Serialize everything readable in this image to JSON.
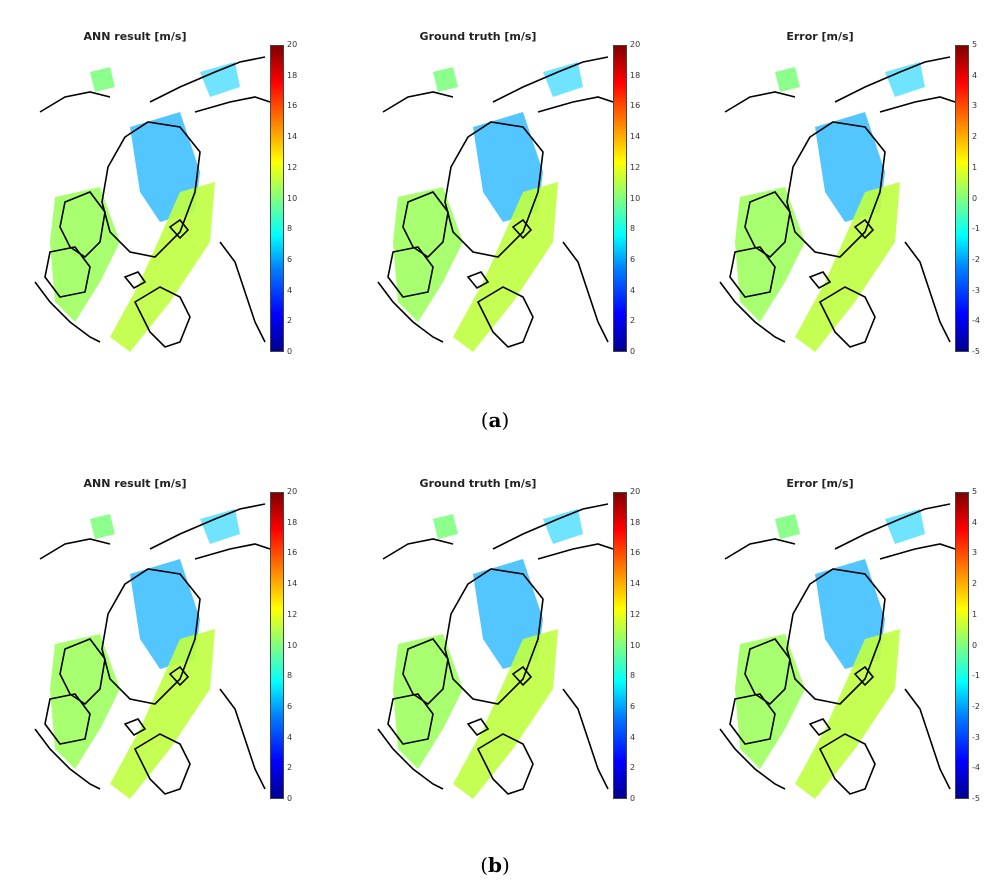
{
  "figure": {
    "rows": [
      {
        "id": "a",
        "caption_open": "(",
        "caption_letter": "a",
        "caption_close": ")",
        "panels": [
          {
            "title": "ANN result [m/s]",
            "scale": "speed",
            "ticks": [
              "20",
              "18",
              "16",
              "14",
              "12",
              "10",
              "8",
              "6",
              "4",
              "2",
              "0"
            ]
          },
          {
            "title": "Ground truth [m/s]",
            "scale": "speed",
            "ticks": [
              "20",
              "18",
              "16",
              "14",
              "12",
              "10",
              "8",
              "6",
              "4",
              "2",
              "0"
            ]
          },
          {
            "title": "Error [m/s]",
            "scale": "error",
            "ticks": [
              "5",
              "4",
              "3",
              "2",
              "1",
              "0",
              "-1",
              "-2",
              "-3",
              "-4",
              "-5"
            ]
          }
        ]
      },
      {
        "id": "b",
        "caption_open": "(",
        "caption_letter": "b",
        "caption_close": ")",
        "panels": [
          {
            "title": "ANN result [m/s]",
            "scale": "speed",
            "ticks": [
              "20",
              "18",
              "16",
              "14",
              "12",
              "10",
              "8",
              "6",
              "4",
              "2",
              "0"
            ]
          },
          {
            "title": "Ground truth [m/s]",
            "scale": "speed",
            "ticks": [
              "20",
              "18",
              "16",
              "14",
              "12",
              "10",
              "8",
              "6",
              "4",
              "2",
              "0"
            ]
          },
          {
            "title": "Error [m/s]",
            "scale": "error",
            "ticks": [
              "5",
              "4",
              "3",
              "2",
              "1",
              "0",
              "-1",
              "-2",
              "-3",
              "-4",
              "-5"
            ]
          }
        ]
      }
    ]
  },
  "colors": {
    "coastline": "#000000",
    "colormap": "jet",
    "speed_low": "#00008f",
    "speed_mid": "#80ff80",
    "speed_high": "#800000"
  }
}
